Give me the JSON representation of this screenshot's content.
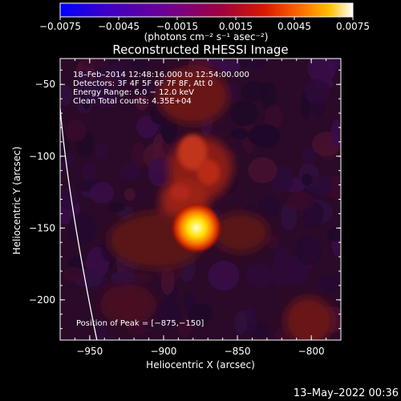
{
  "chart_data": {
    "type": "heatmap",
    "title": "Reconstructed RHESSI Image",
    "xlabel": "Heliocentric X (arcsec)",
    "ylabel": "Heliocentric Y (arcsec)",
    "xlim": [
      -970,
      -780
    ],
    "ylim": [
      -228,
      -32
    ],
    "x_ticks": [
      -950,
      -900,
      -850,
      -800
    ],
    "x_tick_labels": [
      "−950",
      "−900",
      "−850",
      "−800"
    ],
    "y_ticks": [
      -50,
      -100,
      -150,
      -200
    ],
    "y_tick_labels": [
      "−50",
      "−100",
      "−150",
      "−200"
    ],
    "colorbar": {
      "range": [
        -0.0075,
        0.0075
      ],
      "ticks": [
        "−0.0075",
        "−0.0045",
        "−0.0015",
        "0.0015",
        "0.0045",
        "0.0075"
      ],
      "unit_label": "(photons cm⁻² s⁻¹ asec⁻²)",
      "colors": [
        "#0000ff",
        "#3a00c8",
        "#6a0096",
        "#a00040",
        "#d81a00",
        "#ff6a00",
        "#ffc000",
        "#ffffff"
      ]
    },
    "peak": {
      "x": -875,
      "y": -150
    },
    "annotations": [
      "18–Feb–2014 12:48:16.000 to 12:54:00.000",
      "Detectors: 3F 4F 5F 6F 7F 8F, Att 0",
      "Energy Range: 6.0 − 12.0 keV",
      "Clean     Total counts: 4.35E+04"
    ],
    "peak_label": "Position of Peak = [−875,−150]",
    "limb_color": "#ffffff"
  },
  "footer": {
    "date": "13–May–2022 00:36"
  }
}
